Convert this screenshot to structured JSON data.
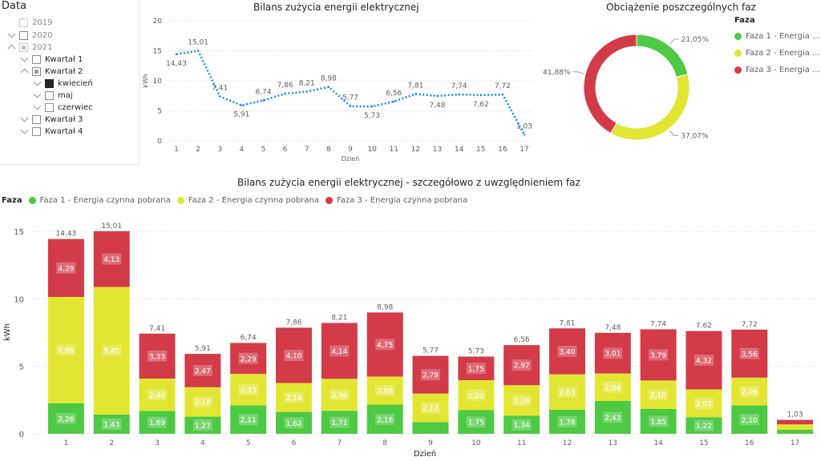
{
  "slicer": {
    "title": "Data",
    "items": [
      {
        "label": "2019"
      },
      {
        "label": "2020"
      },
      {
        "label": "2021"
      },
      {
        "label": "Kwartał 1"
      },
      {
        "label": "Kwartał 2"
      },
      {
        "label": "kwiecień"
      },
      {
        "label": "maj"
      },
      {
        "label": "czerwiec"
      },
      {
        "label": "Kwartał 3"
      },
      {
        "label": "Kwartał 4"
      }
    ]
  },
  "line_chart": {
    "title": "Bilans zużycia energii elektrycznej",
    "chart_data": {
      "type": "line",
      "x": [
        1,
        2,
        3,
        4,
        5,
        6,
        7,
        8,
        9,
        10,
        11,
        12,
        13,
        14,
        15,
        16,
        17
      ],
      "x_tick_labels": [
        "1",
        "2",
        "3",
        "4",
        "5",
        "6",
        "7",
        "8",
        "9",
        "10",
        "11",
        "12",
        "13",
        "14",
        "15",
        "16",
        "17"
      ],
      "values": [
        14.43,
        15.01,
        7.41,
        5.91,
        6.74,
        7.86,
        8.21,
        8.98,
        5.77,
        5.73,
        6.56,
        7.81,
        7.48,
        7.74,
        7.62,
        7.72,
        1.03
      ],
      "data_labels": [
        "14,43",
        "15,01",
        "7,41",
        "5,91",
        "6,74",
        "7,86",
        "8,21",
        "8,98",
        "5,77",
        "5,73",
        "6,56",
        "7,81",
        "7,48",
        "7,74",
        "7,62",
        "7,72",
        "1,03"
      ],
      "xlabel": "Dzień",
      "ylabel": "kWh",
      "ylim": [
        0,
        20
      ],
      "y_ticks": [
        0,
        5,
        10,
        15,
        20
      ],
      "y_tick_labels": [
        "0",
        "5",
        "10",
        "15",
        "20"
      ],
      "color": "#118dff",
      "grid": true
    }
  },
  "donut_chart": {
    "title": "Obciążenie poszczególnych faz",
    "legend_title": "Faza",
    "chart_data": {
      "type": "pie",
      "labels": [
        "Faza 1 - Energia ...",
        "Faza 2 - Energia ...",
        "Faza 3 - Energia ..."
      ],
      "values": [
        21.05,
        37.07,
        41.88
      ],
      "data_labels": [
        "21,05%",
        "37,07%",
        "41,88%"
      ],
      "colors": [
        "#4dc944",
        "#e2e633",
        "#d33b48"
      ],
      "legend_position": "right"
    }
  },
  "bar_chart": {
    "title": "Bilans zużycia energii elektrycznej - szczegółowo z uwzględnieniem faz",
    "legend_title": "Faza",
    "chart_data": {
      "type": "bar",
      "stacked": true,
      "categories": [
        "1",
        "2",
        "3",
        "4",
        "5",
        "6",
        "7",
        "8",
        "9",
        "10",
        "11",
        "12",
        "13",
        "14",
        "15",
        "16",
        "17"
      ],
      "series": [
        {
          "name": "Faza 1 - Energia czynna pobrana",
          "color": "#4dc944",
          "values": [
            2.26,
            1.43,
            1.69,
            1.27,
            2.11,
            1.62,
            1.71,
            2.16,
            0.86,
            1.75,
            1.34,
            1.78,
            2.43,
            1.85,
            1.22,
            2.1,
            0.3
          ],
          "labels": [
            "2,26",
            "1,43",
            "1,69",
            "1,27",
            "2,11",
            "1,62",
            "1,71",
            "2,16",
            "",
            "1,75",
            "1,34",
            "1,78",
            "2,43",
            "1,85",
            "1,22",
            "2,10",
            ""
          ]
        },
        {
          "name": "Faza 2 - Energia czynna pobrana",
          "color": "#e2e633",
          "values": [
            7.88,
            9.45,
            2.4,
            2.18,
            2.33,
            2.14,
            2.36,
            2.08,
            2.12,
            2.22,
            2.26,
            2.63,
            2.04,
            2.1,
            2.07,
            2.06,
            0.4
          ],
          "labels": [
            "7,88",
            "9,45",
            "2,40",
            "2,18",
            "2,33",
            "2,14",
            "2,36",
            "2,08",
            "2,12",
            "2,22",
            "2,26",
            "2,63",
            "2,04",
            "2,10",
            "2,07",
            "2,06",
            ""
          ]
        },
        {
          "name": "Faza 3 - Energia czynna pobrana",
          "color": "#d33b48",
          "values": [
            4.29,
            4.13,
            3.33,
            2.47,
            2.29,
            4.1,
            4.14,
            4.75,
            2.79,
            1.75,
            2.97,
            3.4,
            3.01,
            3.79,
            4.32,
            3.56,
            0.33
          ],
          "labels": [
            "4,29",
            "4,13",
            "3,33",
            "2,47",
            "2,29",
            "4,10",
            "4,14",
            "4,75",
            "2,79",
            "1,75",
            "2,97",
            "3,40",
            "3,01",
            "3,79",
            "4,32",
            "3,56",
            ""
          ]
        }
      ],
      "totals": [
        "14,43",
        "15,01",
        "7,41",
        "5,91",
        "6,74",
        "7,86",
        "8,21",
        "8,98",
        "5,77",
        "5,73",
        "6,56",
        "7,81",
        "7,48",
        "7,74",
        "7,62",
        "7,72",
        "1,03"
      ],
      "xlabel": "Dzień",
      "ylabel": "kWh",
      "ylim": [
        0,
        16
      ],
      "y_ticks": [
        0,
        5,
        10,
        15
      ],
      "y_tick_labels": [
        "0",
        "5",
        "10",
        "15"
      ],
      "legend_position": "top-left",
      "grid": true
    }
  }
}
